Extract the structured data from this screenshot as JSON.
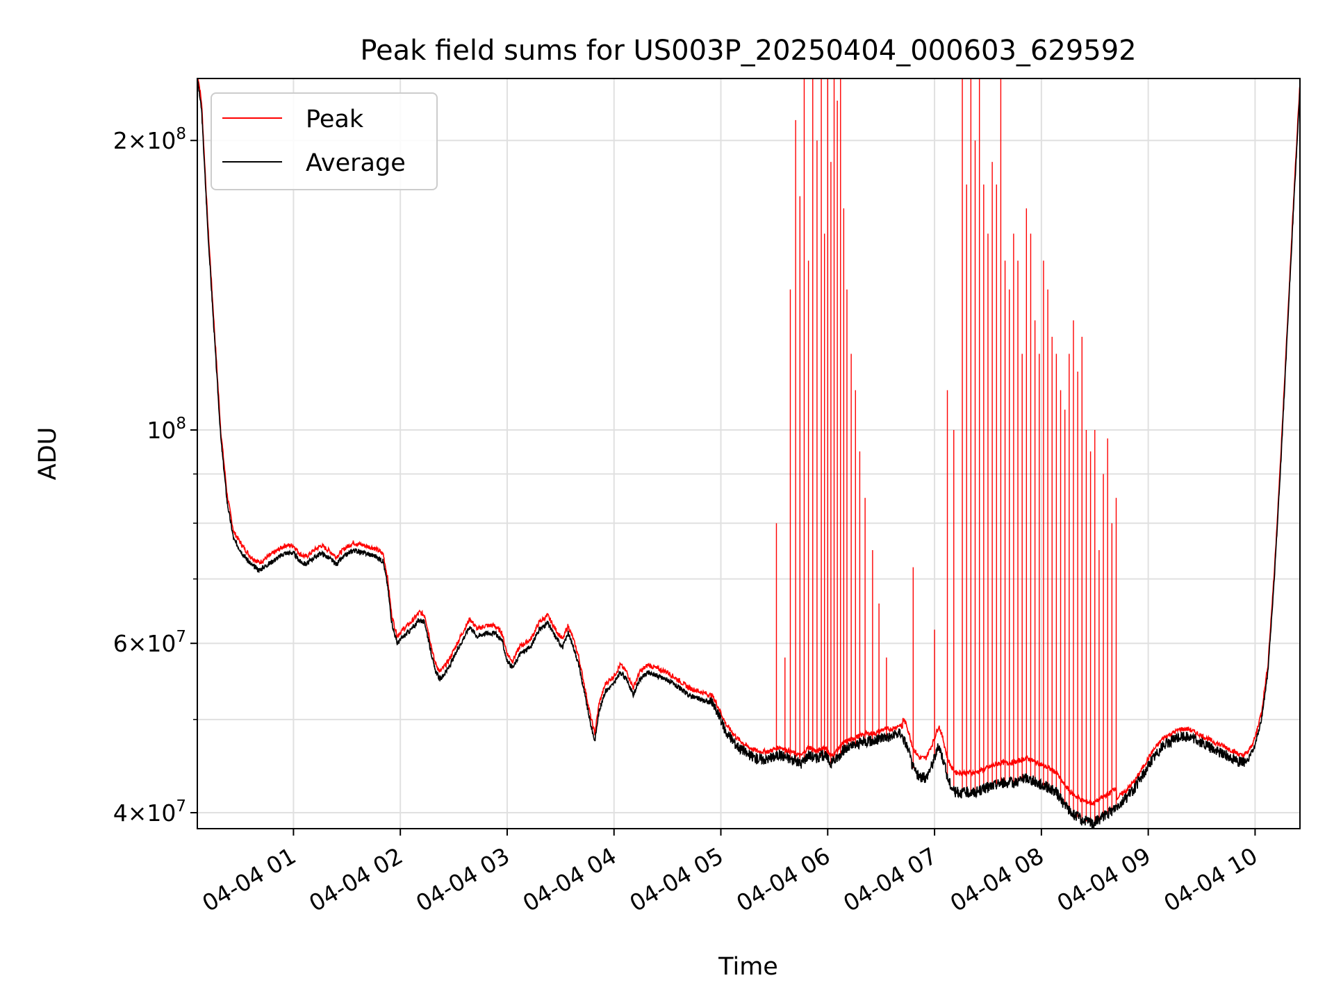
{
  "chart_data": {
    "type": "line",
    "title": "Peak field sums for US003P_20250404_000603_629592",
    "xlabel": "Time",
    "ylabel": "ADU",
    "yscale": "log",
    "xlim_hours": [
      0.1,
      10.42
    ],
    "ylim": [
      38500000,
      232000000
    ],
    "grid": true,
    "legend_position": "top-left",
    "x_ticks": [
      {
        "hour": 1,
        "label": "04-04 01"
      },
      {
        "hour": 2,
        "label": "04-04 02"
      },
      {
        "hour": 3,
        "label": "04-04 03"
      },
      {
        "hour": 4,
        "label": "04-04 04"
      },
      {
        "hour": 5,
        "label": "04-04 05"
      },
      {
        "hour": 6,
        "label": "04-04 06"
      },
      {
        "hour": 7,
        "label": "04-04 07"
      },
      {
        "hour": 8,
        "label": "04-04 08"
      },
      {
        "hour": 9,
        "label": "04-04 09"
      },
      {
        "hour": 10,
        "label": "04-04 10"
      }
    ],
    "y_ticks_major": [
      {
        "value": 40000000,
        "base": "4",
        "exp": "7"
      },
      {
        "value": 60000000,
        "base": "6",
        "exp": "7"
      },
      {
        "value": 100000000,
        "base": "10",
        "exp": "8"
      },
      {
        "value": 200000000,
        "base": "2",
        "exp": "8"
      }
    ],
    "y_ticks_minor": [
      50000000,
      70000000,
      80000000,
      90000000
    ],
    "series": [
      {
        "name": "Peak",
        "color": "#ff0000",
        "spikes": [
          {
            "t": 5.52,
            "v": 80000000
          },
          {
            "t": 5.6,
            "v": 58000000
          },
          {
            "t": 5.65,
            "v": 140000000
          },
          {
            "t": 5.7,
            "v": 210000000
          },
          {
            "t": 5.74,
            "v": 175000000
          },
          {
            "t": 5.78,
            "v": 232000000
          },
          {
            "t": 5.82,
            "v": 150000000
          },
          {
            "t": 5.86,
            "v": 232000000
          },
          {
            "t": 5.9,
            "v": 200000000
          },
          {
            "t": 5.94,
            "v": 232000000
          },
          {
            "t": 5.97,
            "v": 160000000
          },
          {
            "t": 6.0,
            "v": 232000000
          },
          {
            "t": 6.03,
            "v": 190000000
          },
          {
            "t": 6.06,
            "v": 232000000
          },
          {
            "t": 6.09,
            "v": 220000000
          },
          {
            "t": 6.12,
            "v": 232000000
          },
          {
            "t": 6.15,
            "v": 170000000
          },
          {
            "t": 6.18,
            "v": 140000000
          },
          {
            "t": 6.22,
            "v": 120000000
          },
          {
            "t": 6.26,
            "v": 110000000
          },
          {
            "t": 6.3,
            "v": 95000000
          },
          {
            "t": 6.35,
            "v": 85000000
          },
          {
            "t": 6.42,
            "v": 75000000
          },
          {
            "t": 6.48,
            "v": 66000000
          },
          {
            "t": 6.55,
            "v": 58000000
          },
          {
            "t": 6.8,
            "v": 72000000
          },
          {
            "t": 7.0,
            "v": 62000000
          },
          {
            "t": 7.12,
            "v": 110000000
          },
          {
            "t": 7.18,
            "v": 100000000
          },
          {
            "t": 7.26,
            "v": 232000000
          },
          {
            "t": 7.3,
            "v": 180000000
          },
          {
            "t": 7.34,
            "v": 232000000
          },
          {
            "t": 7.38,
            "v": 200000000
          },
          {
            "t": 7.42,
            "v": 232000000
          },
          {
            "t": 7.46,
            "v": 180000000
          },
          {
            "t": 7.5,
            "v": 160000000
          },
          {
            "t": 7.54,
            "v": 190000000
          },
          {
            "t": 7.58,
            "v": 180000000
          },
          {
            "t": 7.62,
            "v": 232000000
          },
          {
            "t": 7.66,
            "v": 150000000
          },
          {
            "t": 7.7,
            "v": 140000000
          },
          {
            "t": 7.74,
            "v": 160000000
          },
          {
            "t": 7.78,
            "v": 150000000
          },
          {
            "t": 7.82,
            "v": 120000000
          },
          {
            "t": 7.86,
            "v": 170000000
          },
          {
            "t": 7.9,
            "v": 160000000
          },
          {
            "t": 7.94,
            "v": 130000000
          },
          {
            "t": 7.98,
            "v": 120000000
          },
          {
            "t": 8.02,
            "v": 150000000
          },
          {
            "t": 8.06,
            "v": 140000000
          },
          {
            "t": 8.1,
            "v": 125000000
          },
          {
            "t": 8.14,
            "v": 120000000
          },
          {
            "t": 8.18,
            "v": 110000000
          },
          {
            "t": 8.22,
            "v": 105000000
          },
          {
            "t": 8.26,
            "v": 120000000
          },
          {
            "t": 8.3,
            "v": 130000000
          },
          {
            "t": 8.34,
            "v": 115000000
          },
          {
            "t": 8.38,
            "v": 125000000
          },
          {
            "t": 8.42,
            "v": 100000000
          },
          {
            "t": 8.46,
            "v": 95000000
          },
          {
            "t": 8.5,
            "v": 100000000
          },
          {
            "t": 8.54,
            "v": 75000000
          },
          {
            "t": 8.58,
            "v": 90000000
          },
          {
            "t": 8.62,
            "v": 98000000
          },
          {
            "t": 8.66,
            "v": 80000000
          },
          {
            "t": 8.7,
            "v": 85000000
          }
        ]
      },
      {
        "name": "Average",
        "color": "#000000",
        "points": [
          [
            0.1,
            232000000
          ],
          [
            0.14,
            215000000
          ],
          [
            0.2,
            160000000
          ],
          [
            0.26,
            125000000
          ],
          [
            0.32,
            98000000
          ],
          [
            0.38,
            84000000
          ],
          [
            0.44,
            77000000
          ],
          [
            0.52,
            74500000
          ],
          [
            0.6,
            72500000
          ],
          [
            0.68,
            71500000
          ],
          [
            0.76,
            72500000
          ],
          [
            0.84,
            73500000
          ],
          [
            0.92,
            74500000
          ],
          [
            1.0,
            74500000
          ],
          [
            1.06,
            73000000
          ],
          [
            1.12,
            72500000
          ],
          [
            1.18,
            73500000
          ],
          [
            1.26,
            74500000
          ],
          [
            1.34,
            73500000
          ],
          [
            1.4,
            72500000
          ],
          [
            1.48,
            74000000
          ],
          [
            1.56,
            75000000
          ],
          [
            1.66,
            74500000
          ],
          [
            1.76,
            74000000
          ],
          [
            1.84,
            73000000
          ],
          [
            1.88,
            69000000
          ],
          [
            1.92,
            63000000
          ],
          [
            1.97,
            60000000
          ],
          [
            2.03,
            61000000
          ],
          [
            2.1,
            62000000
          ],
          [
            2.18,
            63500000
          ],
          [
            2.23,
            63000000
          ],
          [
            2.27,
            60000000
          ],
          [
            2.32,
            56500000
          ],
          [
            2.37,
            55000000
          ],
          [
            2.45,
            56500000
          ],
          [
            2.55,
            59500000
          ],
          [
            2.65,
            62500000
          ],
          [
            2.72,
            61000000
          ],
          [
            2.8,
            61500000
          ],
          [
            2.88,
            61500000
          ],
          [
            2.95,
            60500000
          ],
          [
            3.0,
            57500000
          ],
          [
            3.05,
            56500000
          ],
          [
            3.12,
            58500000
          ],
          [
            3.22,
            59500000
          ],
          [
            3.3,
            62000000
          ],
          [
            3.38,
            63000000
          ],
          [
            3.45,
            61000000
          ],
          [
            3.52,
            59500000
          ],
          [
            3.57,
            61500000
          ],
          [
            3.62,
            59500000
          ],
          [
            3.67,
            57000000
          ],
          [
            3.72,
            53500000
          ],
          [
            3.78,
            49500000
          ],
          [
            3.82,
            47500000
          ],
          [
            3.86,
            51000000
          ],
          [
            3.92,
            53500000
          ],
          [
            4.0,
            54500000
          ],
          [
            4.06,
            56000000
          ],
          [
            4.12,
            55000000
          ],
          [
            4.18,
            53000000
          ],
          [
            4.24,
            55000000
          ],
          [
            4.32,
            56000000
          ],
          [
            4.4,
            55500000
          ],
          [
            4.5,
            55000000
          ],
          [
            4.6,
            54000000
          ],
          [
            4.7,
            53000000
          ],
          [
            4.8,
            52500000
          ],
          [
            4.92,
            52000000
          ],
          [
            4.98,
            50500000
          ],
          [
            5.05,
            48500000
          ],
          [
            5.15,
            47000000
          ],
          [
            5.25,
            46000000
          ],
          [
            5.35,
            45500000
          ],
          [
            5.45,
            45500000
          ],
          [
            5.55,
            46000000
          ],
          [
            5.65,
            45500000
          ],
          [
            5.75,
            45000000
          ],
          [
            5.82,
            46000000
          ],
          [
            5.9,
            45500000
          ],
          [
            5.97,
            46000000
          ],
          [
            6.03,
            45000000
          ],
          [
            6.08,
            45500000
          ],
          [
            6.15,
            46500000
          ],
          [
            6.25,
            47000000
          ],
          [
            6.35,
            47500000
          ],
          [
            6.45,
            47500000
          ],
          [
            6.52,
            48000000
          ],
          [
            6.6,
            48000000
          ],
          [
            6.68,
            48500000
          ],
          [
            6.74,
            47000000
          ],
          [
            6.8,
            44500000
          ],
          [
            6.86,
            43500000
          ],
          [
            6.92,
            43500000
          ],
          [
            6.98,
            45000000
          ],
          [
            7.04,
            47000000
          ],
          [
            7.08,
            45500000
          ],
          [
            7.12,
            43500000
          ],
          [
            7.16,
            42500000
          ],
          [
            7.2,
            42000000
          ],
          [
            7.28,
            42000000
          ],
          [
            7.38,
            42000000
          ],
          [
            7.5,
            42500000
          ],
          [
            7.62,
            43000000
          ],
          [
            7.74,
            43000000
          ],
          [
            7.86,
            43500000
          ],
          [
            7.96,
            43000000
          ],
          [
            8.06,
            42500000
          ],
          [
            8.14,
            42000000
          ],
          [
            8.2,
            41000000
          ],
          [
            8.28,
            40000000
          ],
          [
            8.38,
            39300000
          ],
          [
            8.48,
            39000000
          ],
          [
            8.56,
            39500000
          ],
          [
            8.64,
            40000000
          ],
          [
            8.72,
            40800000
          ],
          [
            8.8,
            41500000
          ],
          [
            8.88,
            42500000
          ],
          [
            8.96,
            44000000
          ],
          [
            9.04,
            45500000
          ],
          [
            9.14,
            47000000
          ],
          [
            9.22,
            47500000
          ],
          [
            9.3,
            48000000
          ],
          [
            9.38,
            48000000
          ],
          [
            9.46,
            47500000
          ],
          [
            9.54,
            47000000
          ],
          [
            9.62,
            46500000
          ],
          [
            9.72,
            46000000
          ],
          [
            9.8,
            45500000
          ],
          [
            9.88,
            45000000
          ],
          [
            9.94,
            45500000
          ],
          [
            10.0,
            47000000
          ],
          [
            10.06,
            50000000
          ],
          [
            10.12,
            56000000
          ],
          [
            10.18,
            70000000
          ],
          [
            10.24,
            92000000
          ],
          [
            10.3,
            125000000
          ],
          [
            10.36,
            170000000
          ],
          [
            10.42,
            226000000
          ]
        ]
      }
    ]
  }
}
